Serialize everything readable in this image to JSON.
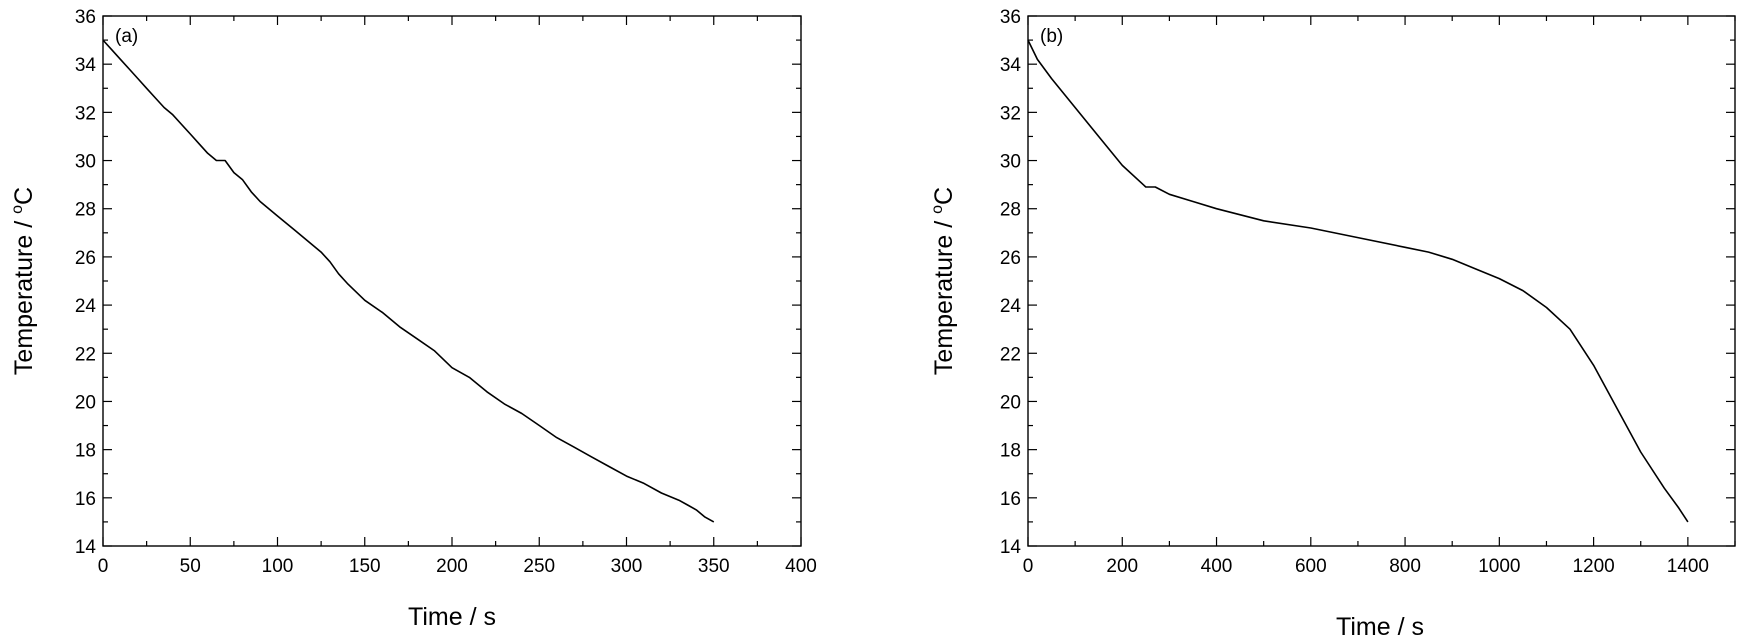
{
  "chart_data": [
    {
      "type": "line",
      "panel_label": "(a)",
      "title": "",
      "xlabel": "Time / s",
      "ylabel": "Temperature / ",
      "ylabel_unit_sup": "o",
      "ylabel_unit": "C",
      "xlim": [
        0,
        400
      ],
      "ylim": [
        14,
        36
      ],
      "xticks": [
        0,
        50,
        100,
        150,
        200,
        250,
        300,
        350,
        400
      ],
      "yticks": [
        14,
        16,
        18,
        20,
        22,
        24,
        26,
        28,
        30,
        32,
        34,
        36
      ],
      "grid": false,
      "series": [
        {
          "x": [
            0,
            5,
            10,
            15,
            20,
            25,
            30,
            35,
            40,
            45,
            50,
            55,
            60,
            65,
            70,
            75,
            80,
            85,
            90,
            95,
            100,
            110,
            120,
            125,
            130,
            135,
            140,
            150,
            160,
            170,
            180,
            190,
            200,
            210,
            220,
            230,
            240,
            250,
            260,
            270,
            280,
            290,
            300,
            310,
            320,
            330,
            335,
            340,
            345,
            350
          ],
          "y": [
            35.0,
            34.6,
            34.2,
            33.8,
            33.4,
            33.0,
            32.6,
            32.2,
            31.9,
            31.5,
            31.1,
            30.7,
            30.3,
            30.0,
            30.0,
            29.5,
            29.2,
            28.7,
            28.3,
            28.0,
            27.7,
            27.1,
            26.5,
            26.2,
            25.8,
            25.3,
            24.9,
            24.2,
            23.7,
            23.1,
            22.6,
            22.1,
            21.4,
            21.0,
            20.4,
            19.9,
            19.5,
            19.0,
            18.5,
            18.1,
            17.7,
            17.3,
            16.9,
            16.6,
            16.2,
            15.9,
            15.7,
            15.5,
            15.2,
            15.0
          ]
        }
      ]
    },
    {
      "type": "line",
      "panel_label": "(b)",
      "title": "",
      "xlabel": "Time / s",
      "ylabel": "Temperature / ",
      "ylabel_unit_sup": "o",
      "ylabel_unit": "C",
      "xlim": [
        0,
        1500
      ],
      "ylim": [
        14,
        36
      ],
      "xticks": [
        0,
        200,
        400,
        600,
        800,
        1000,
        1200,
        1400
      ],
      "yticks": [
        14,
        16,
        18,
        20,
        22,
        24,
        26,
        28,
        30,
        32,
        34,
        36
      ],
      "grid": false,
      "series": [
        {
          "x": [
            0,
            20,
            50,
            100,
            150,
            200,
            250,
            270,
            300,
            350,
            400,
            500,
            600,
            700,
            800,
            850,
            900,
            950,
            1000,
            1050,
            1100,
            1150,
            1200,
            1250,
            1300,
            1350,
            1380,
            1400
          ],
          "y": [
            35.0,
            34.2,
            33.4,
            32.2,
            31.0,
            29.8,
            28.9,
            28.9,
            28.6,
            28.3,
            28.0,
            27.5,
            27.2,
            26.8,
            26.4,
            26.2,
            25.9,
            25.5,
            25.1,
            24.6,
            23.9,
            23.0,
            21.5,
            19.7,
            17.9,
            16.4,
            15.6,
            15.0
          ]
        }
      ]
    }
  ]
}
